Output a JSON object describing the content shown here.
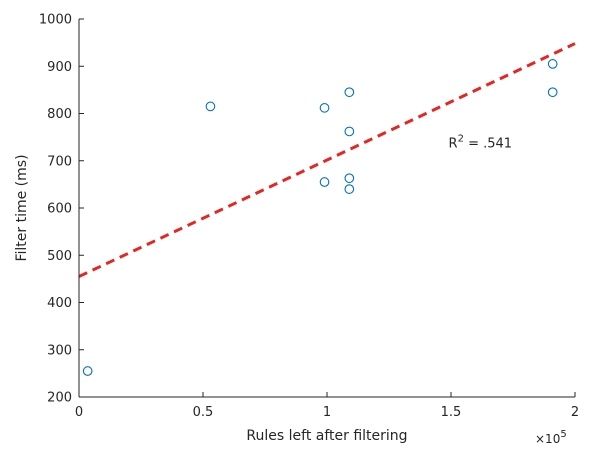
{
  "chart_data": {
    "type": "scatter",
    "title": "",
    "xlabel": "Rules left after filtering",
    "ylabel": "Filter time (ms)",
    "xlim": [
      0,
      200000
    ],
    "ylim": [
      200,
      1000
    ],
    "x_scale_label": {
      "base": "×10",
      "exponent": "5"
    },
    "x_ticks": [
      0,
      50000,
      100000,
      150000,
      200000
    ],
    "x_tick_labels": [
      "0",
      "0.5",
      "1",
      "1.5",
      "2"
    ],
    "y_ticks": [
      200,
      300,
      400,
      500,
      600,
      700,
      800,
      900,
      1000
    ],
    "y_tick_labels": [
      "200",
      "300",
      "400",
      "500",
      "600",
      "700",
      "800",
      "900",
      "1000"
    ],
    "grid": false,
    "series": [
      {
        "marker": "circle-open",
        "color": "#0072BD",
        "x": [
          3500,
          53000,
          99000,
          99000,
          109000,
          109000,
          109000,
          109000,
          191000,
          191000
        ],
        "y": [
          255,
          815,
          812,
          655,
          845,
          762,
          663,
          640,
          905,
          845
        ]
      }
    ],
    "fit_line": {
      "style": "dashed",
      "color": "#E52622",
      "x": [
        0,
        200000
      ],
      "y": [
        455,
        948
      ]
    },
    "annotation": {
      "text": "R",
      "superscript": "2",
      "rest": " = .541",
      "x": 149000,
      "y": 728
    }
  }
}
